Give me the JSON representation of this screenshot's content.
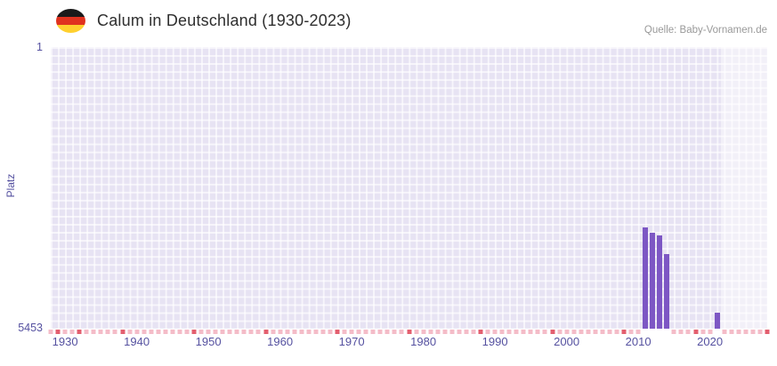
{
  "header": {
    "title": "Calum in Deutschland (1930-2023)",
    "source": "Quelle: Baby-Vornamen.de",
    "flag_icon": "germany-flag",
    "flag_colors": [
      "#1a1a1a",
      "#e0321f",
      "#ffd02e"
    ]
  },
  "chart_data": {
    "type": "bar",
    "title": "Calum in Deutschland (1930-2023)",
    "source": "Quelle: Baby-Vornamen.de",
    "ylabel": "Platz",
    "y_axis": {
      "top_label": "1",
      "bottom_label": "5453",
      "domain": [
        1,
        5453
      ],
      "inverted": true
    },
    "x_ticks": [
      1930,
      1940,
      1950,
      1960,
      1970,
      1980,
      1990,
      2000,
      2010,
      2020
    ],
    "x_domain": [
      1928,
      2028
    ],
    "bars": [
      {
        "year": 2011,
        "rank": 3500
      },
      {
        "year": 2012,
        "rank": 3600
      },
      {
        "year": 2013,
        "rank": 3650
      },
      {
        "year": 2014,
        "rank": 4000
      },
      {
        "year": 2021,
        "rank": 5150
      }
    ],
    "highlight_band": {
      "start_year": 2022
    },
    "axis_marks": {
      "light_step_pct": 1,
      "dark_positions_pct": [
        1,
        4,
        10,
        20,
        30,
        40,
        50,
        60,
        70,
        80,
        90,
        100
      ]
    },
    "colors": {
      "bar": "#7d57c4",
      "plot_background": "#e7e3f3",
      "grid_line": "rgba(255,255,255,0.65)",
      "axis_text": "#5551a0",
      "title_text": "#2e2e2e",
      "source_text": "#999999",
      "highlight_overlay": "rgba(255,255,255,0.45)",
      "mark_light": "#f4bcc8",
      "mark_dark": "#e35f6f"
    },
    "legend": null,
    "grid": true
  }
}
